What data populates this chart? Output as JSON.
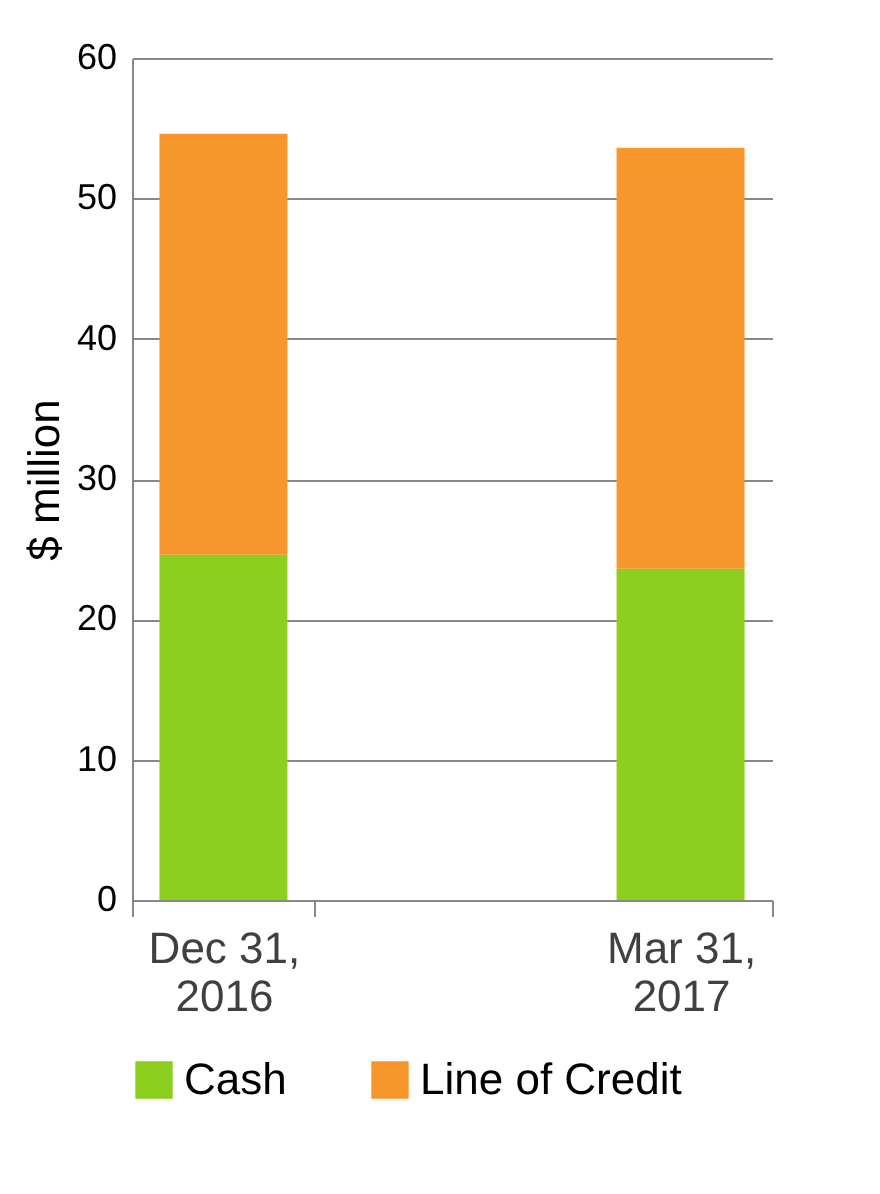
{
  "chart_data": {
    "type": "bar",
    "stacked": true,
    "ylabel": "$ million",
    "categories": [
      "Dec 31, 2016",
      "Mar 31, 2017"
    ],
    "series": [
      {
        "name": "Cash",
        "color": "#8ccf1f",
        "values": [
          24.6,
          23.6
        ]
      },
      {
        "name": "Line of Credit",
        "color": "#f7962a",
        "values": [
          30,
          30
        ]
      }
    ],
    "ylim": [
      0,
      60
    ],
    "yticks": [
      0,
      10,
      20,
      30,
      40,
      50,
      60
    ],
    "grid": "y",
    "legend": "bottom"
  }
}
